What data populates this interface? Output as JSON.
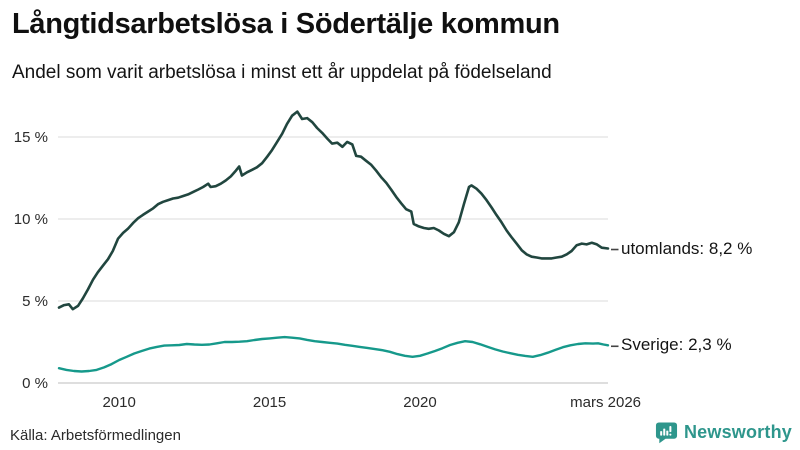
{
  "header": {
    "title": "Långtidsarbetslösa i Södertälje kommun",
    "subtitle": "Andel som varit arbetslösa i minst ett år uppdelat på födelseland"
  },
  "chart_data": {
    "type": "line",
    "title": "Långtidsarbetslösa i Södertälje kommun",
    "subtitle": "Andel som varit arbetslösa i minst ett år uppdelat på födelseland",
    "source": "Källa: Arbetsförmedlingen",
    "x_unit": "decimal_year",
    "x_range": [
      2008,
      2026.25
    ],
    "ylim": [
      0,
      16.8
    ],
    "grid": "horizontal",
    "legend_position": "inline-right-labels",
    "gridline_color": "#e2e2e2",
    "axis_line_color": "#c9c9c9",
    "tick_text_color": "#2b2b2b",
    "y_ticks": [
      {
        "value": 0,
        "label": "0 %"
      },
      {
        "value": 5,
        "label": "5 %"
      },
      {
        "value": 10,
        "label": "10 %"
      },
      {
        "value": 15,
        "label": "15 %"
      }
    ],
    "x_ticks": [
      {
        "value": 2010,
        "label": "2010"
      },
      {
        "value": 2015,
        "label": "2015"
      },
      {
        "value": 2020,
        "label": "2020"
      },
      {
        "value": 2026.17,
        "label": "mars 2026"
      }
    ],
    "series": [
      {
        "name": "utomlands",
        "label": "utomlands: 8,2 %",
        "last_value": "8,2 %",
        "color": "#21463f",
        "points": [
          [
            2008.0,
            4.6
          ],
          [
            2008.17,
            4.75
          ],
          [
            2008.33,
            4.8
          ],
          [
            2008.46,
            4.5
          ],
          [
            2008.63,
            4.7
          ],
          [
            2008.79,
            5.15
          ],
          [
            2008.96,
            5.7
          ],
          [
            2009.13,
            6.3
          ],
          [
            2009.29,
            6.75
          ],
          [
            2009.46,
            7.15
          ],
          [
            2009.63,
            7.55
          ],
          [
            2009.79,
            8.05
          ],
          [
            2009.96,
            8.8
          ],
          [
            2010.13,
            9.15
          ],
          [
            2010.29,
            9.4
          ],
          [
            2010.46,
            9.75
          ],
          [
            2010.63,
            10.05
          ],
          [
            2010.79,
            10.25
          ],
          [
            2010.96,
            10.45
          ],
          [
            2011.13,
            10.65
          ],
          [
            2011.29,
            10.9
          ],
          [
            2011.46,
            11.05
          ],
          [
            2011.63,
            11.15
          ],
          [
            2011.79,
            11.25
          ],
          [
            2011.96,
            11.3
          ],
          [
            2012.13,
            11.4
          ],
          [
            2012.29,
            11.5
          ],
          [
            2012.46,
            11.65
          ],
          [
            2012.63,
            11.8
          ],
          [
            2012.79,
            11.95
          ],
          [
            2012.96,
            12.15
          ],
          [
            2013.04,
            11.95
          ],
          [
            2013.21,
            12.0
          ],
          [
            2013.38,
            12.15
          ],
          [
            2013.54,
            12.35
          ],
          [
            2013.71,
            12.6
          ],
          [
            2013.88,
            12.95
          ],
          [
            2013.99,
            13.2
          ],
          [
            2014.08,
            12.65
          ],
          [
            2014.25,
            12.85
          ],
          [
            2014.42,
            13.0
          ],
          [
            2014.58,
            13.15
          ],
          [
            2014.75,
            13.4
          ],
          [
            2014.92,
            13.8
          ],
          [
            2015.08,
            14.2
          ],
          [
            2015.25,
            14.7
          ],
          [
            2015.42,
            15.2
          ],
          [
            2015.58,
            15.8
          ],
          [
            2015.75,
            16.3
          ],
          [
            2015.92,
            16.55
          ],
          [
            2016.08,
            16.1
          ],
          [
            2016.25,
            16.15
          ],
          [
            2016.42,
            15.9
          ],
          [
            2016.58,
            15.55
          ],
          [
            2016.75,
            15.25
          ],
          [
            2016.92,
            14.9
          ],
          [
            2017.08,
            14.6
          ],
          [
            2017.25,
            14.65
          ],
          [
            2017.42,
            14.4
          ],
          [
            2017.58,
            14.7
          ],
          [
            2017.75,
            14.55
          ],
          [
            2017.88,
            13.85
          ],
          [
            2018.04,
            13.8
          ],
          [
            2018.21,
            13.55
          ],
          [
            2018.38,
            13.3
          ],
          [
            2018.54,
            12.95
          ],
          [
            2018.71,
            12.55
          ],
          [
            2018.88,
            12.2
          ],
          [
            2019.04,
            11.8
          ],
          [
            2019.21,
            11.35
          ],
          [
            2019.38,
            10.95
          ],
          [
            2019.54,
            10.6
          ],
          [
            2019.71,
            10.45
          ],
          [
            2019.79,
            9.7
          ],
          [
            2019.96,
            9.55
          ],
          [
            2020.13,
            9.45
          ],
          [
            2020.29,
            9.4
          ],
          [
            2020.46,
            9.45
          ],
          [
            2020.63,
            9.3
          ],
          [
            2020.79,
            9.1
          ],
          [
            2020.96,
            8.95
          ],
          [
            2021.13,
            9.2
          ],
          [
            2021.29,
            9.8
          ],
          [
            2021.46,
            10.9
          ],
          [
            2021.63,
            11.95
          ],
          [
            2021.71,
            12.05
          ],
          [
            2021.88,
            11.85
          ],
          [
            2022.04,
            11.55
          ],
          [
            2022.21,
            11.15
          ],
          [
            2022.38,
            10.7
          ],
          [
            2022.54,
            10.25
          ],
          [
            2022.71,
            9.8
          ],
          [
            2022.88,
            9.3
          ],
          [
            2023.04,
            8.9
          ],
          [
            2023.21,
            8.5
          ],
          [
            2023.38,
            8.1
          ],
          [
            2023.54,
            7.85
          ],
          [
            2023.71,
            7.7
          ],
          [
            2023.88,
            7.65
          ],
          [
            2024.04,
            7.6
          ],
          [
            2024.21,
            7.6
          ],
          [
            2024.38,
            7.6
          ],
          [
            2024.54,
            7.65
          ],
          [
            2024.71,
            7.7
          ],
          [
            2024.88,
            7.85
          ],
          [
            2025.04,
            8.05
          ],
          [
            2025.21,
            8.4
          ],
          [
            2025.38,
            8.5
          ],
          [
            2025.54,
            8.45
          ],
          [
            2025.71,
            8.55
          ],
          [
            2025.88,
            8.45
          ],
          [
            2026.04,
            8.25
          ],
          [
            2026.25,
            8.2
          ]
        ]
      },
      {
        "name": "Sverige",
        "label": "Sverige: 2,3 %",
        "last_value": "2,3 %",
        "color": "#16998b",
        "points": [
          [
            2008.0,
            0.9
          ],
          [
            2008.25,
            0.8
          ],
          [
            2008.5,
            0.73
          ],
          [
            2008.75,
            0.7
          ],
          [
            2009.0,
            0.73
          ],
          [
            2009.25,
            0.8
          ],
          [
            2009.5,
            0.95
          ],
          [
            2009.75,
            1.15
          ],
          [
            2010.0,
            1.4
          ],
          [
            2010.25,
            1.6
          ],
          [
            2010.5,
            1.8
          ],
          [
            2010.75,
            1.95
          ],
          [
            2011.0,
            2.1
          ],
          [
            2011.25,
            2.2
          ],
          [
            2011.5,
            2.28
          ],
          [
            2011.75,
            2.3
          ],
          [
            2012.0,
            2.32
          ],
          [
            2012.25,
            2.38
          ],
          [
            2012.5,
            2.35
          ],
          [
            2012.75,
            2.33
          ],
          [
            2013.0,
            2.35
          ],
          [
            2013.25,
            2.42
          ],
          [
            2013.5,
            2.5
          ],
          [
            2013.75,
            2.5
          ],
          [
            2014.0,
            2.52
          ],
          [
            2014.25,
            2.55
          ],
          [
            2014.5,
            2.62
          ],
          [
            2014.75,
            2.68
          ],
          [
            2015.0,
            2.72
          ],
          [
            2015.25,
            2.76
          ],
          [
            2015.5,
            2.8
          ],
          [
            2015.75,
            2.76
          ],
          [
            2016.0,
            2.72
          ],
          [
            2016.25,
            2.63
          ],
          [
            2016.5,
            2.55
          ],
          [
            2016.75,
            2.5
          ],
          [
            2017.0,
            2.45
          ],
          [
            2017.25,
            2.4
          ],
          [
            2017.5,
            2.33
          ],
          [
            2017.75,
            2.27
          ],
          [
            2018.0,
            2.2
          ],
          [
            2018.25,
            2.14
          ],
          [
            2018.5,
            2.07
          ],
          [
            2018.75,
            2.0
          ],
          [
            2019.0,
            1.9
          ],
          [
            2019.25,
            1.76
          ],
          [
            2019.5,
            1.66
          ],
          [
            2019.75,
            1.6
          ],
          [
            2020.0,
            1.66
          ],
          [
            2020.25,
            1.8
          ],
          [
            2020.5,
            1.95
          ],
          [
            2020.75,
            2.12
          ],
          [
            2021.0,
            2.32
          ],
          [
            2021.25,
            2.45
          ],
          [
            2021.5,
            2.55
          ],
          [
            2021.75,
            2.5
          ],
          [
            2022.0,
            2.36
          ],
          [
            2022.25,
            2.2
          ],
          [
            2022.5,
            2.05
          ],
          [
            2022.75,
            1.92
          ],
          [
            2023.0,
            1.82
          ],
          [
            2023.25,
            1.72
          ],
          [
            2023.5,
            1.65
          ],
          [
            2023.75,
            1.6
          ],
          [
            2024.0,
            1.7
          ],
          [
            2024.25,
            1.85
          ],
          [
            2024.5,
            2.02
          ],
          [
            2024.75,
            2.18
          ],
          [
            2025.0,
            2.3
          ],
          [
            2025.25,
            2.38
          ],
          [
            2025.5,
            2.42
          ],
          [
            2025.75,
            2.4
          ],
          [
            2025.92,
            2.42
          ],
          [
            2026.1,
            2.35
          ],
          [
            2026.25,
            2.3
          ]
        ]
      }
    ]
  },
  "footer": {
    "source": "Källa: Arbetsförmedlingen"
  },
  "branding": {
    "name": "Newsworthy",
    "color": "#2E968C",
    "icon": "speech-bubble-bar-chart-icon"
  }
}
